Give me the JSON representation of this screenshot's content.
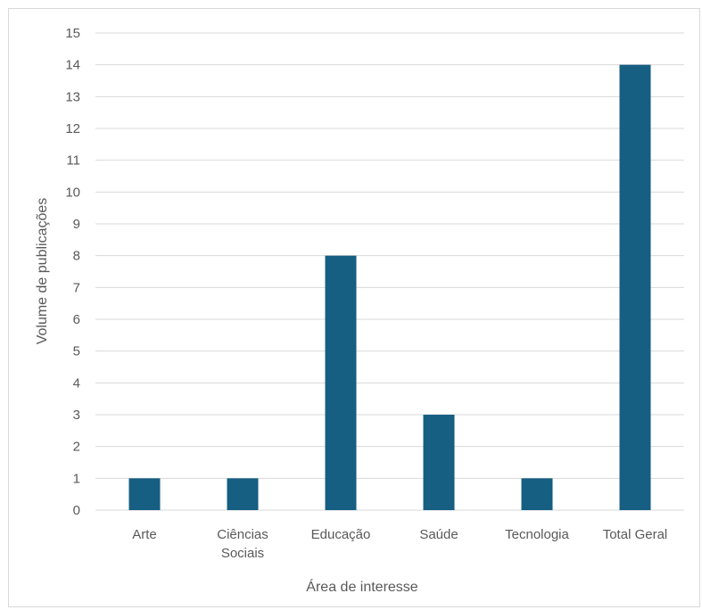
{
  "chart_data": {
    "type": "bar",
    "categories": [
      "Arte",
      "Ciências Sociais",
      "Educação",
      "Saúde",
      "Tecnologia",
      "Total Geral"
    ],
    "category_lines": [
      [
        "Arte"
      ],
      [
        "Ciências",
        "Sociais"
      ],
      [
        "Educação"
      ],
      [
        "Saúde"
      ],
      [
        "Tecnologia"
      ],
      [
        "Total Geral"
      ]
    ],
    "values": [
      1,
      1,
      8,
      3,
      1,
      14
    ],
    "title": "",
    "xlabel": "Área de interesse",
    "ylabel": "Volume de publicações",
    "ylim": [
      0,
      15
    ],
    "yticks": [
      "0",
      "1",
      "2",
      "3",
      "4",
      "5",
      "6",
      "7",
      "8",
      "9",
      "10",
      "11",
      "12",
      "13",
      "14",
      "15"
    ],
    "bar_color": "#165e82",
    "grid_color": "#d9d9d9",
    "grid": true,
    "legend": "none"
  }
}
